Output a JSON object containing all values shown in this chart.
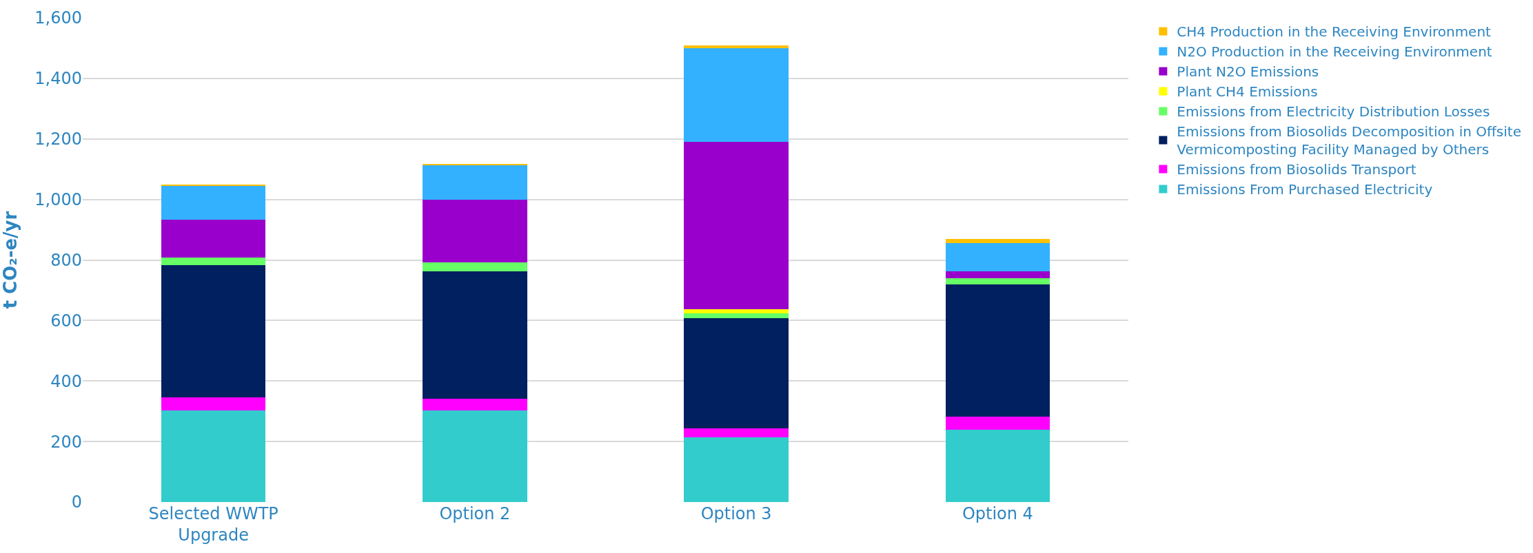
{
  "chart_data": {
    "type": "bar",
    "stacked": true,
    "ylabel": "t CO₂-e/yr",
    "categories": [
      "Selected WWTP Upgrade",
      "Option 2",
      "Option 3",
      "Option 4"
    ],
    "series": [
      {
        "name": "Emissions From Purchased Electricity",
        "color": "#33cccc",
        "values": [
          303,
          303,
          215,
          240
        ]
      },
      {
        "name": "Emissions from Biosolids Transport",
        "color": "#ff00ff",
        "values": [
          43,
          38,
          29,
          43
        ]
      },
      {
        "name": "Emissions from Biosolids Decomposition in Offsite Vermicomposting Facility Managed by Others",
        "color": "#002060",
        "values": [
          436,
          422,
          363,
          436
        ]
      },
      {
        "name": "Emissions from Electricity Distribution Losses",
        "color": "#66ff66",
        "values": [
          25,
          29,
          16,
          20
        ]
      },
      {
        "name": "Plant CH4 Emissions",
        "color": "#ffff00",
        "values": [
          0,
          0,
          14,
          0
        ]
      },
      {
        "name": "Plant N2O Emissions",
        "color": "#9900cc",
        "values": [
          126,
          208,
          553,
          24
        ]
      },
      {
        "name": "N2O Production in the Receiving Environment",
        "color": "#33b1ff",
        "values": [
          112,
          112,
          310,
          93
        ]
      },
      {
        "name": "CH4 Production in the Receiving Environment",
        "color": "#ffc000",
        "values": [
          5,
          5,
          10,
          13
        ]
      }
    ],
    "ylim": [
      0,
      1600
    ],
    "yticks": [
      {
        "value": 0,
        "label": "0"
      },
      {
        "value": 200,
        "label": "200"
      },
      {
        "value": 400,
        "label": "400"
      },
      {
        "value": 600,
        "label": "600"
      },
      {
        "value": 800,
        "label": "800"
      },
      {
        "value": 1000,
        "label": "1,000"
      },
      {
        "value": 1200,
        "label": "1,200"
      },
      {
        "value": 1400,
        "label": "1,400"
      },
      {
        "value": 1600,
        "label": "1,600"
      }
    ],
    "grid": "y",
    "legend": "right"
  }
}
